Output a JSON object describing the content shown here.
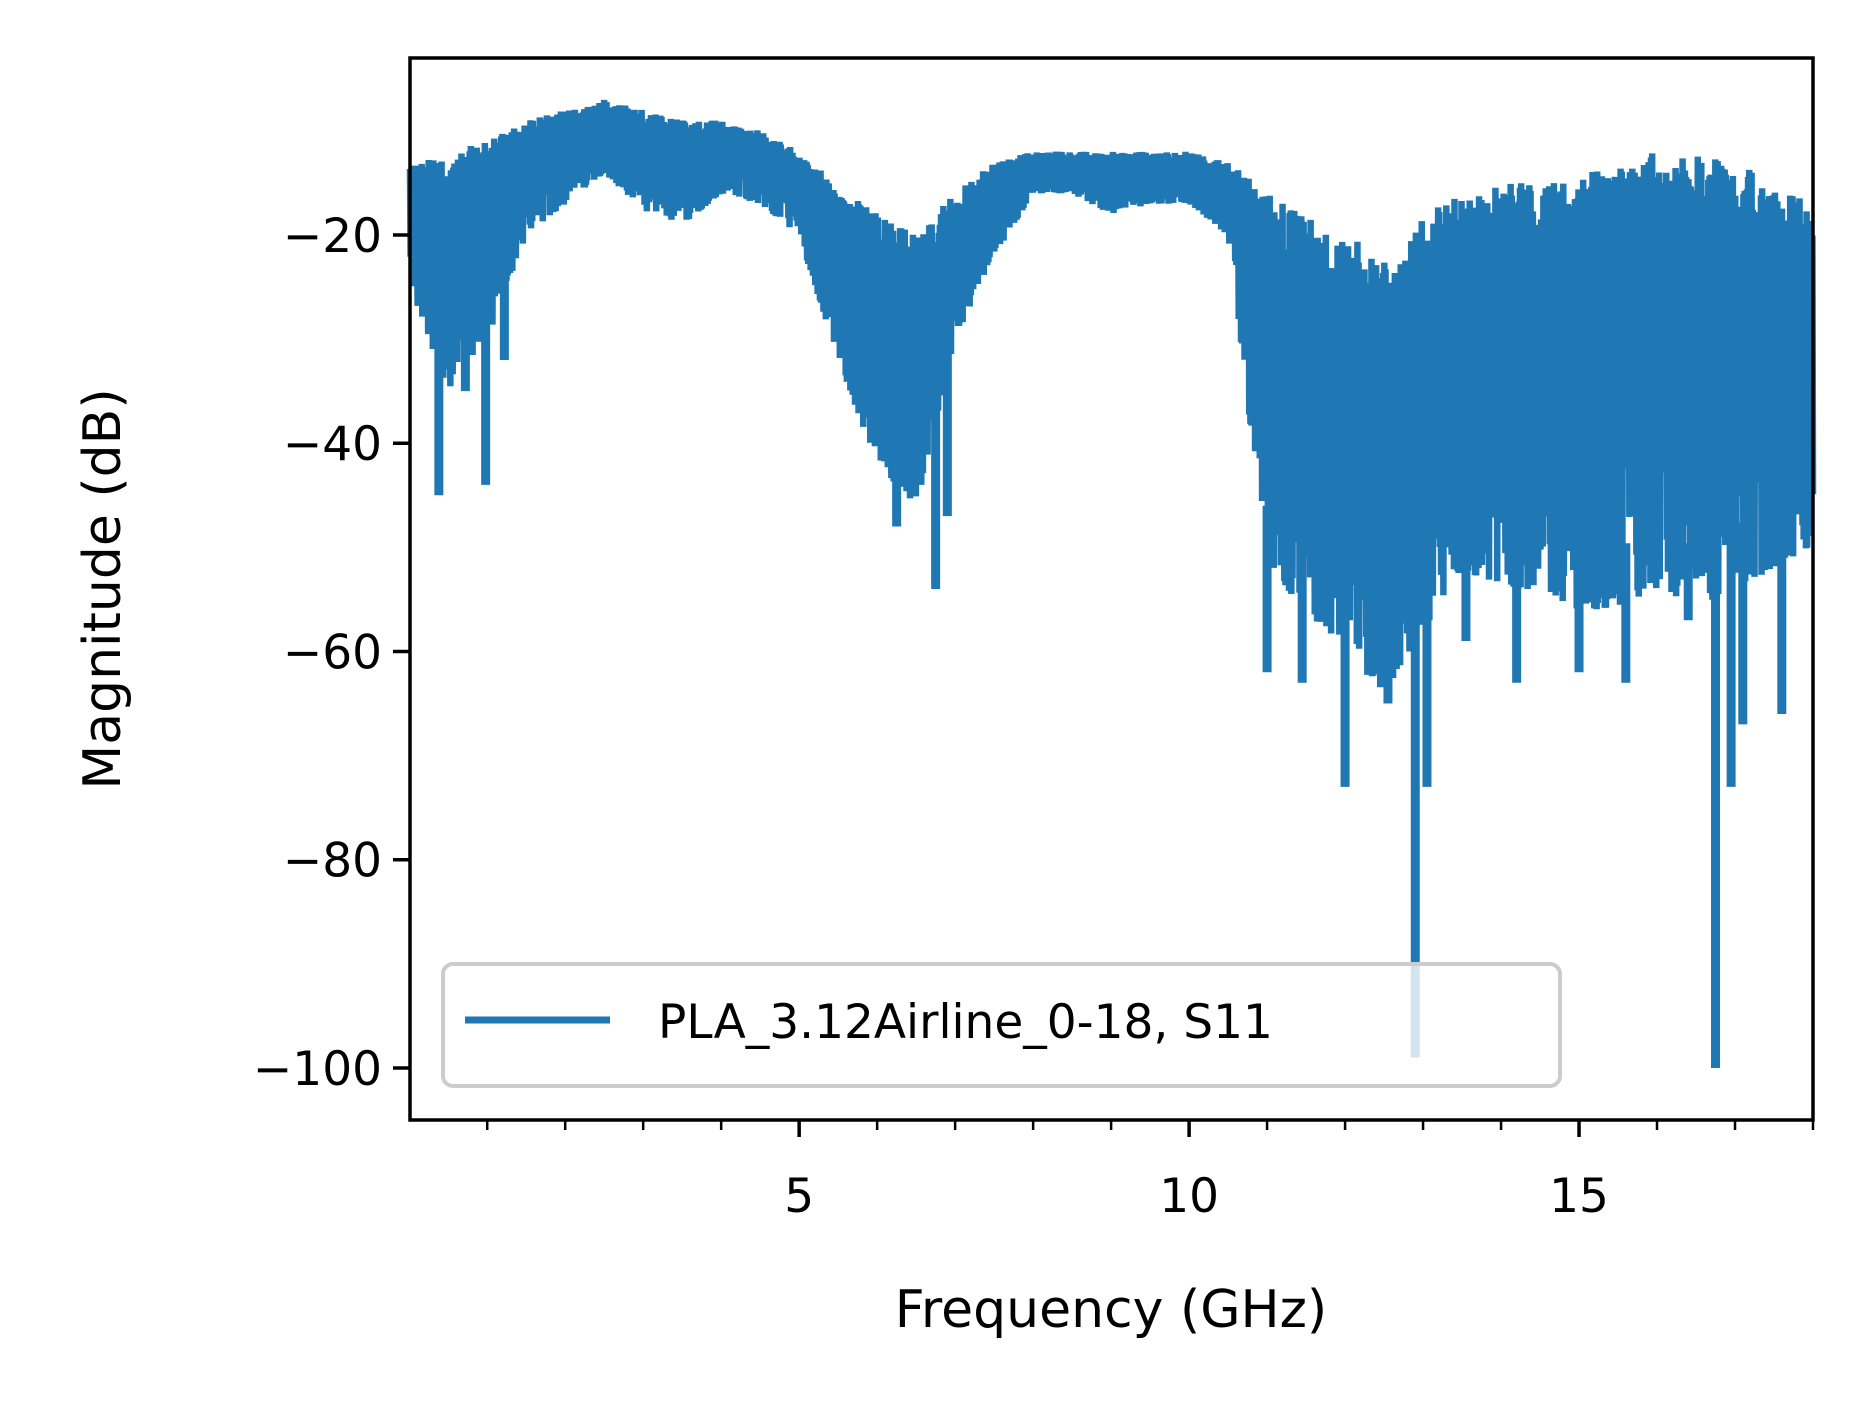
{
  "chart_data": {
    "type": "line",
    "xlabel": "Frequency (GHz)",
    "ylabel": "Magnitude (dB)",
    "xlim": [
      0.01,
      18.0
    ],
    "ylim": [
      -105,
      -3
    ],
    "x_ticks": [
      5,
      10,
      15
    ],
    "x_tick_labels": [
      "5",
      "10",
      "15"
    ],
    "x_minor_ticks": [
      1,
      2,
      3,
      4,
      6,
      7,
      8,
      9,
      11,
      12,
      13,
      14,
      16,
      17,
      18
    ],
    "y_ticks": [
      -20,
      -40,
      -60,
      -80,
      -100
    ],
    "y_tick_labels": [
      "−20",
      "−40",
      "−60",
      "−80",
      "−100"
    ],
    "grid": false,
    "legend_position": "lower-left",
    "series": [
      {
        "name": "PLA_3.12Airline_0-18, S11",
        "color": "#1f77b4",
        "envelope_x": [
          0.01,
          0.5,
          1.0,
          1.5,
          2.0,
          2.5,
          3.0,
          3.5,
          4.0,
          4.5,
          5.0,
          5.5,
          6.0,
          6.5,
          7.0,
          7.5,
          8.0,
          8.5,
          9.0,
          9.5,
          10.0,
          10.5,
          11.0,
          11.5,
          12.0,
          12.5,
          13.0,
          13.5,
          14.0,
          14.5,
          15.0,
          15.5,
          16.0,
          16.5,
          17.0,
          17.5,
          18.0
        ],
        "upper": [
          -13,
          -12,
          -11,
          -9,
          -8,
          -7,
          -8,
          -9,
          -9,
          -10,
          -12,
          -15,
          -18,
          -20,
          -16,
          -13,
          -12,
          -12,
          -12,
          -12,
          -12,
          -13,
          -16,
          -18,
          -20,
          -22,
          -18,
          -16,
          -15,
          -15,
          -14,
          -13,
          -12,
          -12,
          -13,
          -15,
          -17
        ],
        "lower": [
          -25,
          -35,
          -30,
          -20,
          -17,
          -14,
          -18,
          -19,
          -16,
          -17,
          -20,
          -32,
          -42,
          -46,
          -30,
          -22,
          -16,
          -16,
          -18,
          -17,
          -17,
          -20,
          -52,
          -56,
          -60,
          -64,
          -58,
          -52,
          -54,
          -54,
          -56,
          -56,
          -54,
          -56,
          -54,
          -52,
          -50
        ],
        "spikes": [
          {
            "x": 0.38,
            "y": -45
          },
          {
            "x": 0.72,
            "y": -35
          },
          {
            "x": 0.98,
            "y": -44
          },
          {
            "x": 1.22,
            "y": -32
          },
          {
            "x": 6.25,
            "y": -48
          },
          {
            "x": 6.55,
            "y": -44
          },
          {
            "x": 6.9,
            "y": -47
          },
          {
            "x": 6.75,
            "y": -54
          },
          {
            "x": 11.0,
            "y": -62
          },
          {
            "x": 11.45,
            "y": -63
          },
          {
            "x": 12.0,
            "y": -73
          },
          {
            "x": 12.55,
            "y": -65
          },
          {
            "x": 12.9,
            "y": -99
          },
          {
            "x": 13.05,
            "y": -73
          },
          {
            "x": 13.55,
            "y": -59
          },
          {
            "x": 14.2,
            "y": -63
          },
          {
            "x": 15.0,
            "y": -62
          },
          {
            "x": 15.6,
            "y": -63
          },
          {
            "x": 16.4,
            "y": -57
          },
          {
            "x": 16.75,
            "y": -100
          },
          {
            "x": 16.95,
            "y": -73
          },
          {
            "x": 17.1,
            "y": -67
          },
          {
            "x": 17.6,
            "y": -66
          }
        ]
      }
    ]
  }
}
